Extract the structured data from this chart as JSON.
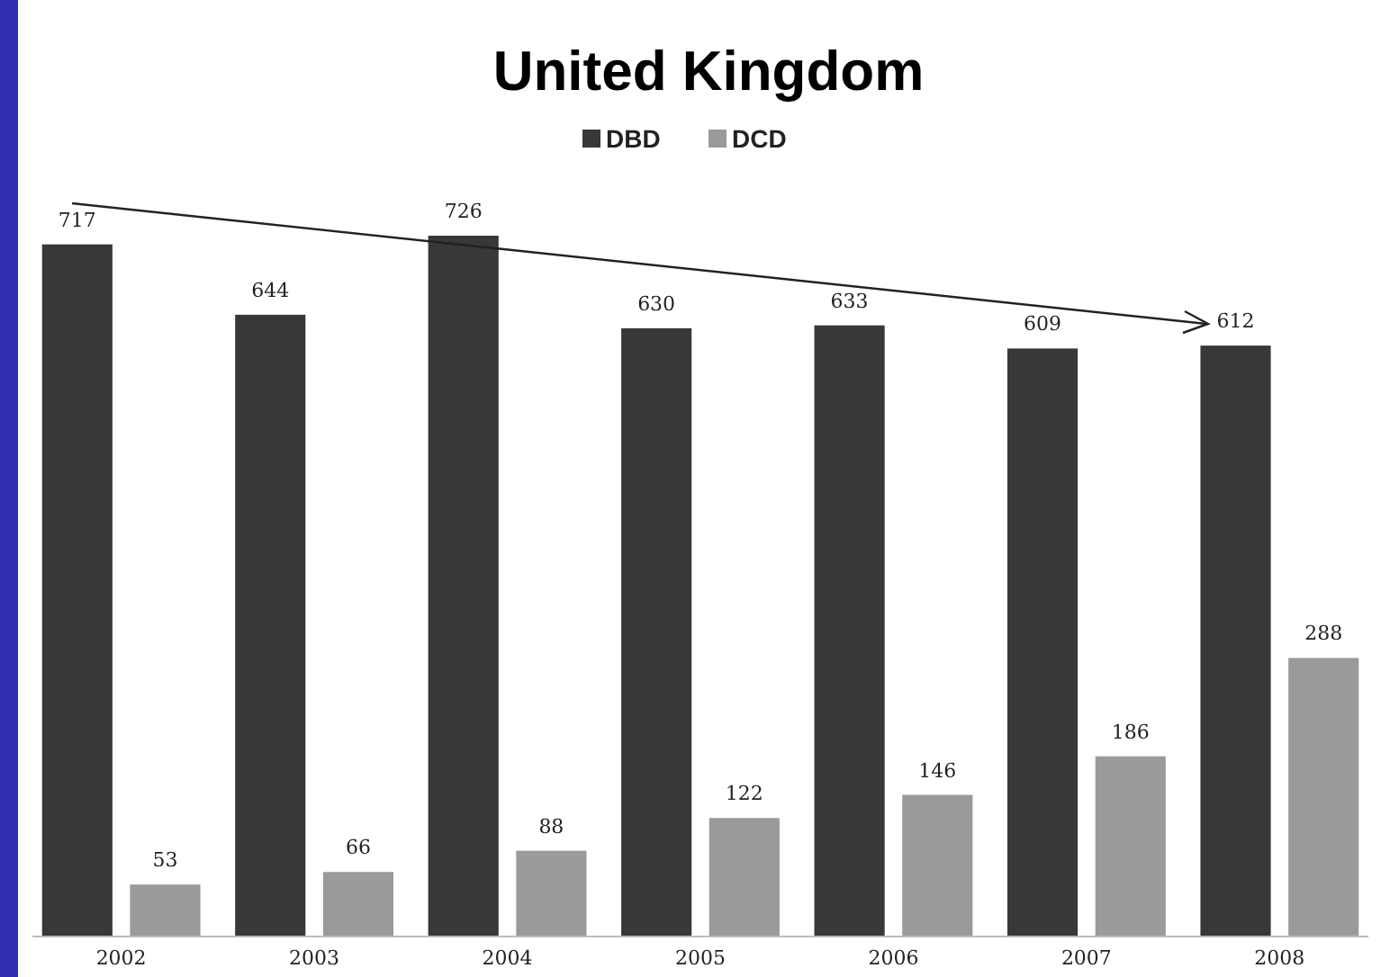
{
  "chart_data": {
    "type": "bar",
    "title": "United Kingdom",
    "categories": [
      "2002",
      "2003",
      "2004",
      "2005",
      "2006",
      "2007",
      "2008"
    ],
    "series": [
      {
        "name": "DBD",
        "color": "#383838",
        "values": [
          717,
          644,
          726,
          630,
          633,
          609,
          612
        ]
      },
      {
        "name": "DCD",
        "color": "#9a9a9a",
        "values": [
          53,
          66,
          88,
          122,
          146,
          186,
          288
        ]
      }
    ],
    "data_labels": true,
    "legend": "top"
  }
}
